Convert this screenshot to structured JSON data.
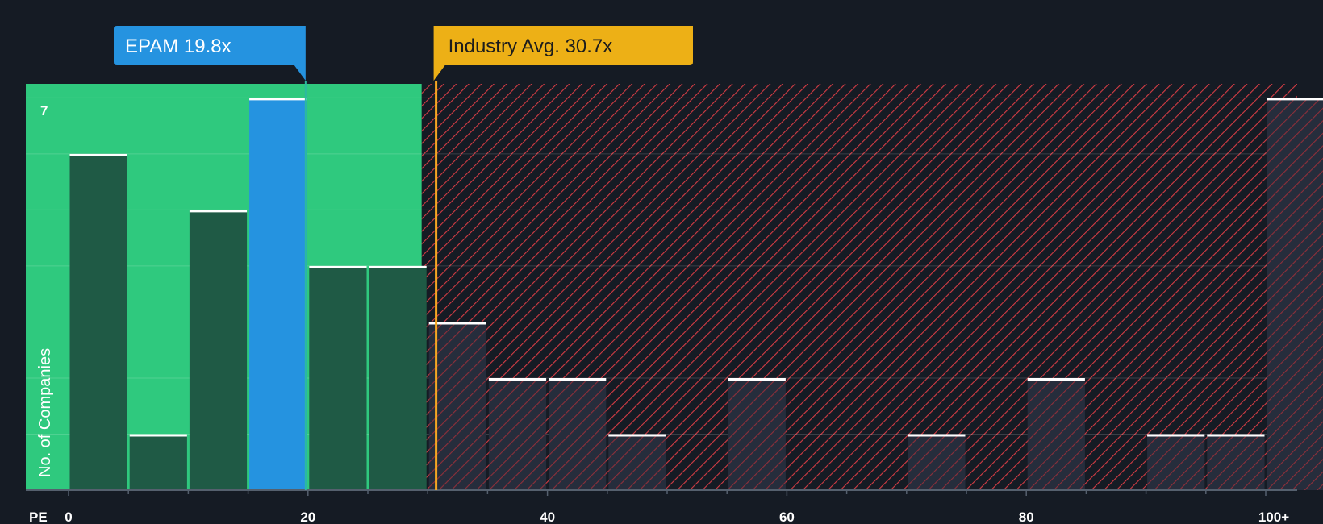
{
  "chart_data": {
    "type": "bar",
    "title": "",
    "xlabel": "PE",
    "ylabel": "No. of Companies",
    "xlim": [
      0,
      102.5
    ],
    "ylim": [
      0,
      7.25
    ],
    "x_ticks": [
      {
        "value": 0,
        "label": "0"
      },
      {
        "value": 20,
        "label": "20"
      },
      {
        "value": 40,
        "label": "40"
      },
      {
        "value": 60,
        "label": "60"
      },
      {
        "value": 80,
        "label": "80"
      },
      {
        "value": 100,
        "label": "100+"
      }
    ],
    "y_tick_label": {
      "value": 7,
      "label": "7"
    },
    "bin_width": 5,
    "bins": [
      {
        "start": 0,
        "value": 6
      },
      {
        "start": 5,
        "value": 1
      },
      {
        "start": 10,
        "value": 5
      },
      {
        "start": 15,
        "value": 7,
        "highlight": true
      },
      {
        "start": 20,
        "value": 4
      },
      {
        "start": 25,
        "value": 4
      },
      {
        "start": 30,
        "value": 3
      },
      {
        "start": 35,
        "value": 2
      },
      {
        "start": 40,
        "value": 2
      },
      {
        "start": 45,
        "value": 1
      },
      {
        "start": 50,
        "value": 0
      },
      {
        "start": 55,
        "value": 2
      },
      {
        "start": 60,
        "value": 0
      },
      {
        "start": 65,
        "value": 0
      },
      {
        "start": 70,
        "value": 1
      },
      {
        "start": 75,
        "value": 0
      },
      {
        "start": 80,
        "value": 2
      },
      {
        "start": 85,
        "value": 0
      },
      {
        "start": 90,
        "value": 1
      },
      {
        "start": 95,
        "value": 1
      },
      {
        "start": 100,
        "value": 7
      }
    ],
    "fair_zone_max": 29.5,
    "company": {
      "name": "EPAM",
      "value": 19.8,
      "label": "EPAM 19.8x"
    },
    "industry": {
      "name": "Industry Avg.",
      "value": 30.7,
      "label": "Industry Avg. 30.7x"
    },
    "colors": {
      "background": "#151b24",
      "fair_zone": "#2fc97e",
      "bar_dark": "#1f5a45",
      "bar_highlight": "#2593e0",
      "overvalued_hatch": "#d43c44",
      "company_callout": "#2593e0",
      "industry_callout": "#edb016",
      "industry_line": "#f5a623",
      "cap_line": "#ffffff"
    }
  }
}
